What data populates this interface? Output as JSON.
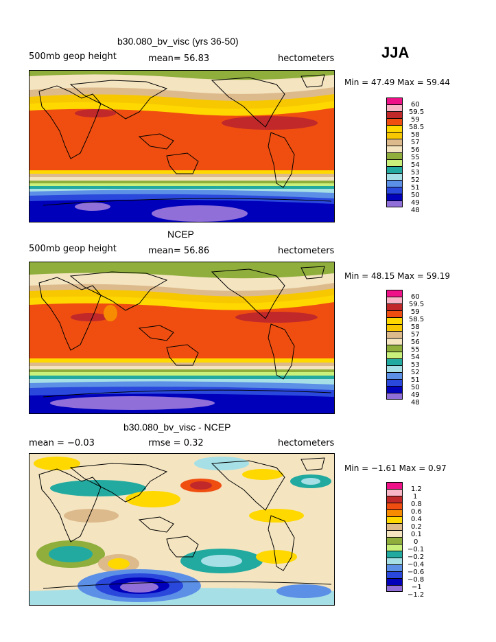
{
  "season": "JJA",
  "panels": [
    {
      "title": "b30.080_bv_visc (yrs 36-50)",
      "left_label": "500mb  geop  height",
      "mid_label": "mean=   56.83",
      "units": "hectometers",
      "min_max": "Min =   47.49  Max =   59.44",
      "legend": [
        "60",
        "59.5",
        "59",
        "58.5",
        "58",
        "57",
        "56",
        "55",
        "54",
        "53",
        "52",
        "51",
        "50",
        "49",
        "48"
      ]
    },
    {
      "title": "NCEP",
      "left_label": "500mb  geop  height",
      "mid_label": "mean=   56.86",
      "units": "hectometers",
      "min_max": "Min =   48.15  Max =   59.19",
      "legend": [
        "60",
        "59.5",
        "59",
        "58.5",
        "58",
        "57",
        "56",
        "55",
        "54",
        "53",
        "52",
        "51",
        "50",
        "49",
        "48"
      ]
    },
    {
      "title": "b30.080_bv_visc - NCEP",
      "left_label": "mean =   −0.03",
      "mid_label": "rmse =     0.32",
      "units": "hectometers",
      "min_max": "Min =   −1.61  Max =    0.97",
      "legend": [
        "1.2",
        "1",
        "0.8",
        "0.6",
        "0.4",
        "0.2",
        "0.1",
        "0",
        "−0.1",
        "−0.2",
        "−0.4",
        "−0.6",
        "−0.8",
        "−1",
        "−1.2"
      ]
    }
  ],
  "palette": [
    "#ee1188",
    "#f9b6c6",
    "#c0282a",
    "#ef4e10",
    "#f78c00",
    "#ffd800",
    "#ddba8c",
    "#f4e4c0",
    "#8fae3c",
    "#c8f07a",
    "#22aaa0",
    "#a6e0e6",
    "#5c90e6",
    "#2a48dc",
    "#0000bb",
    "#9070d8"
  ],
  "legend_colors": [
    "#ee1188",
    "#f9b6c6",
    "#c0282a",
    "#ef4e10",
    "#ffd800",
    "#f7c800",
    "#ddba8c",
    "#f4e4c0",
    "#8fae3c",
    "#c8f07a",
    "#22aaa0",
    "#a6e0e6",
    "#5c90e6",
    "#2a48dc",
    "#0000bb",
    "#9070d8"
  ]
}
